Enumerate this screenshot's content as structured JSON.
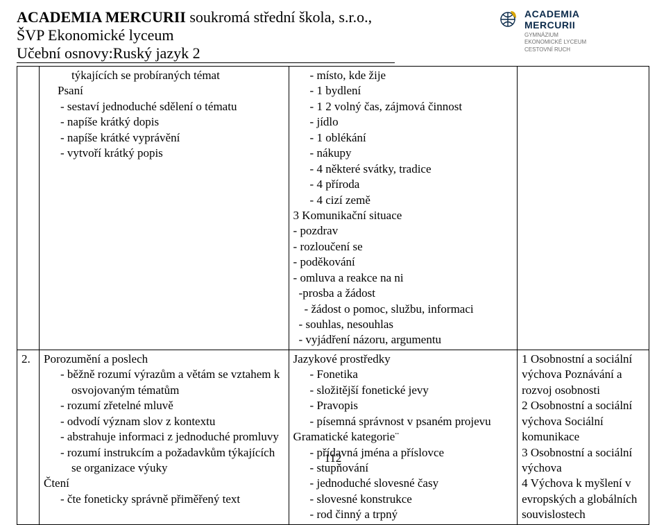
{
  "header": {
    "title_bold": "ACADEMIA MERCURII",
    "title_rest": "  soukromá střední škola, s.r.o.,",
    "subtitle": "ŠVP Ekonomické lyceum",
    "section": "Učební osnovy:Ruský jazyk 2"
  },
  "logo": {
    "brand": "ACADEMIA",
    "brand2": "MERCURII",
    "sub1": "GYMNÁZIUM",
    "sub2": "EKONOMICKÉ LYCEUM",
    "sub3": "CESTOVNÍ RUCH",
    "icon_color": "#0b2a4a",
    "icon_accent": "#d8a400"
  },
  "row1": {
    "a_top": "týkajících se probíraných témat",
    "a_psani": "Psaní",
    "a_items": [
      "sestaví jednoduché sdělení o tématu",
      "napíše krátký dopis",
      "napíše krátké vyprávění",
      "vytvoří krátký popis"
    ],
    "b_items": [
      "místo, kde žije",
      "1 bydlení",
      "1 2 volný čas, zájmová činnost",
      "jídlo",
      "1 oblékání",
      "nákupy",
      "4 některé svátky, tradice",
      "4 příroda",
      "4 cizí země"
    ],
    "b_plain": [
      "3 Komunikační situace",
      "- pozdrav",
      "- rozloučení se",
      "- poděkování",
      "- omluva a reakce na ni",
      " -prosba a žádost",
      "  - žádost o pomoc, službu, informaci",
      " - souhlas, nesouhlas",
      " - vyjádření názoru, argumentu"
    ]
  },
  "row2": {
    "num": "2.",
    "a_head": "Porozumění a poslech",
    "a_items": [
      "běžně rozumí výrazům a větám se vztahem k osvojovaným tématům",
      "rozumí zřetelné mluvě",
      "odvodí význam slov z kontextu",
      "abstrahuje informaci z jednoduché promluvy",
      "rozumí instrukcím a požadavkům týkajících se organizace výuky"
    ],
    "a_cteni": "Čtení",
    "a_cteni_items": [
      "čte foneticky správně přiměřený text"
    ],
    "b_head": "Jazykové prostředky",
    "b_items": [
      "Fonetika",
      "složitější fonetické jevy",
      "Pravopis",
      "písemná správnost v psaném projevu"
    ],
    "b_gram": "Gramatické kategorie¨",
    "b_gram_items": [
      "přídavná jména a příslovce",
      "stupňování",
      "jednoduché slovesné časy",
      "slovesné konstrukce",
      "rod činný a trpný"
    ],
    "c_lines": [
      "1 Osobnostní a sociální výchova Poznávání a rozvoj osobnosti",
      "2 Osobnostní a sociální výchova Sociální komunikace",
      "3 Osobnostní a sociální výchova",
      "4 Výchova k myšlení v evropských a globálních souvislostech"
    ]
  },
  "page_number": "112"
}
